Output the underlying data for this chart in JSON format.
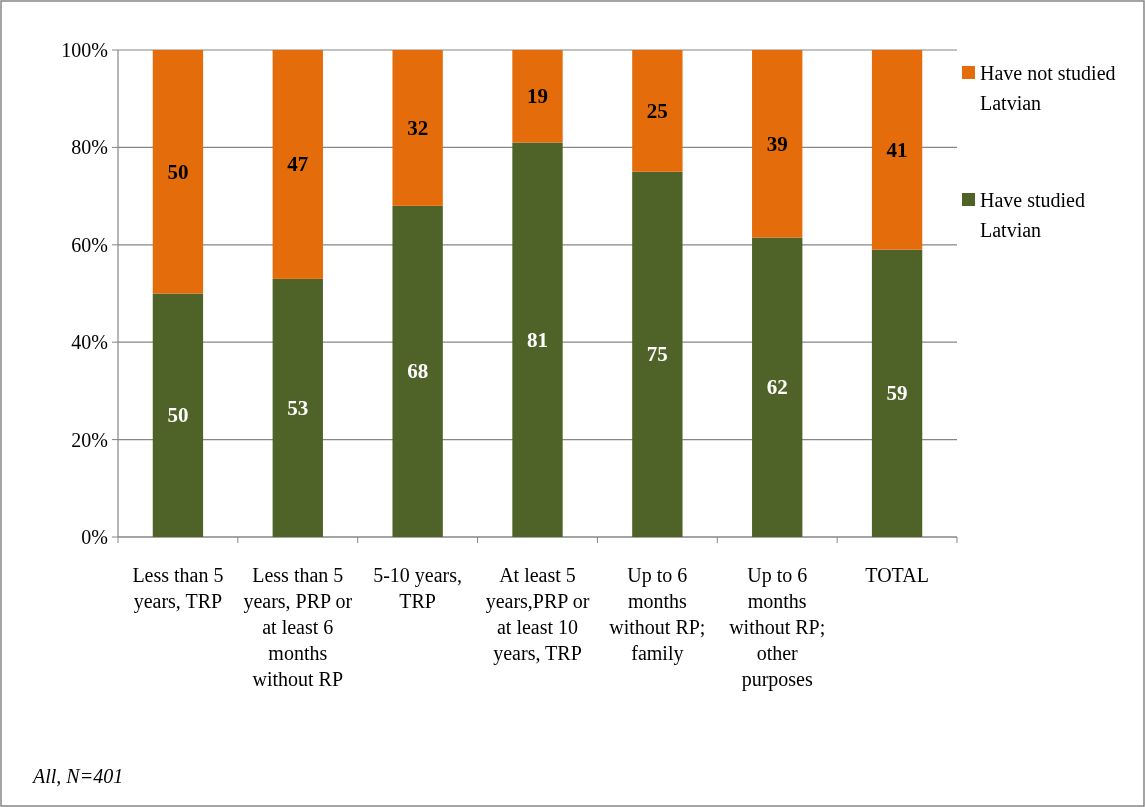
{
  "chart_data": {
    "type": "bar",
    "stacked": true,
    "categories": [
      "Less than 5 years, TRP",
      "Less than 5 years, PRP or at least 6 months without RP",
      "5-10 years, TRP",
      "At least 5 years,PRP or at least 10 years, TRP",
      "Up to 6 months without RP; family",
      "Up to 6 months without RP; other purposes",
      "TOTAL"
    ],
    "series": [
      {
        "name": "Have studied Latvian",
        "color": "#4f6228",
        "values": [
          50,
          53,
          68,
          81,
          75,
          61.5,
          59
        ],
        "value_labels": [
          "50",
          "53",
          "68",
          "81",
          "75",
          "62",
          "59"
        ]
      },
      {
        "name": "Have not studied Latvian",
        "color": "#e46c0a",
        "values": [
          50,
          47,
          32,
          19,
          25,
          38.5,
          41
        ],
        "value_labels": [
          "50",
          "47",
          "32",
          "19",
          "25",
          "39",
          "41"
        ]
      }
    ],
    "ylim": [
      0,
      100
    ],
    "yticks": [
      {
        "value": 0,
        "label": "0%"
      },
      {
        "value": 20,
        "label": "20%"
      },
      {
        "value": 40,
        "label": "40%"
      },
      {
        "value": 60,
        "label": "60%"
      },
      {
        "value": 80,
        "label": "80%"
      },
      {
        "value": 100,
        "label": "100%"
      }
    ],
    "grid": "y",
    "legend": "right",
    "annotations": [
      "All, N=401"
    ]
  }
}
